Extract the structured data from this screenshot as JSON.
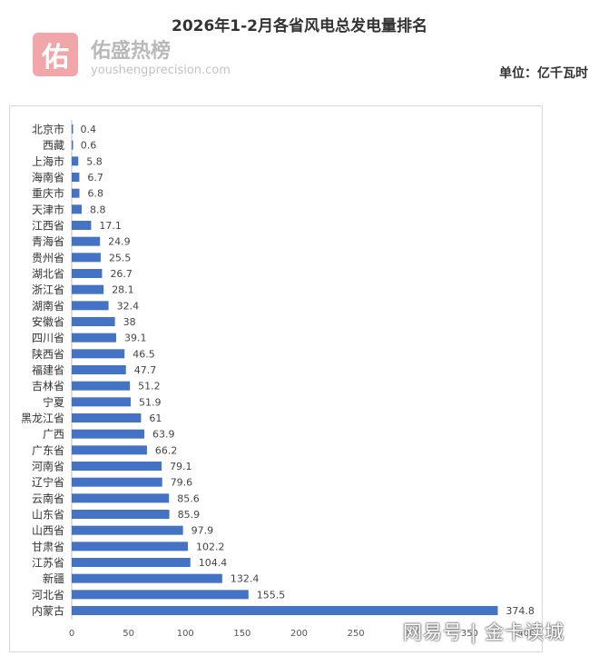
{
  "header": {
    "title": "2026年1-2月各省风电总发电量排名",
    "unit": "单位：亿千瓦时"
  },
  "brand": {
    "logo_char": "佑",
    "name": "佑盛热榜",
    "url": "youshengprecision.com"
  },
  "watermark": {
    "left": "网易号",
    "right": "金卡读城"
  },
  "chart_data": {
    "type": "bar",
    "orientation": "horizontal",
    "categories": [
      "北京市",
      "西藏",
      "上海市",
      "海南省",
      "重庆市",
      "天津市",
      "江西省",
      "青海省",
      "贵州省",
      "湖北省",
      "浙江省",
      "湖南省",
      "安徽省",
      "四川省",
      "陕西省",
      "福建省",
      "吉林省",
      "宁夏",
      "黑龙江省",
      "广西",
      "广东省",
      "河南省",
      "辽宁省",
      "云南省",
      "山东省",
      "山西省",
      "甘肃省",
      "江苏省",
      "新疆",
      "河北省",
      "内蒙古"
    ],
    "values": [
      0.4,
      0.6,
      5.8,
      6.7,
      6.8,
      8.8,
      17.1,
      24.9,
      25.5,
      26.7,
      28.1,
      32.4,
      38,
      39.1,
      46.5,
      47.7,
      51.2,
      51.9,
      61,
      63.9,
      66.2,
      79.1,
      79.6,
      85.6,
      85.9,
      97.9,
      102.2,
      104.4,
      132.4,
      155.5,
      374.8
    ],
    "xticks": [
      0,
      50,
      100,
      150,
      200,
      250,
      300,
      350,
      400
    ],
    "xlim": [
      0,
      400
    ],
    "bar_color": "#4472c4",
    "grid": false,
    "legend": "none"
  }
}
